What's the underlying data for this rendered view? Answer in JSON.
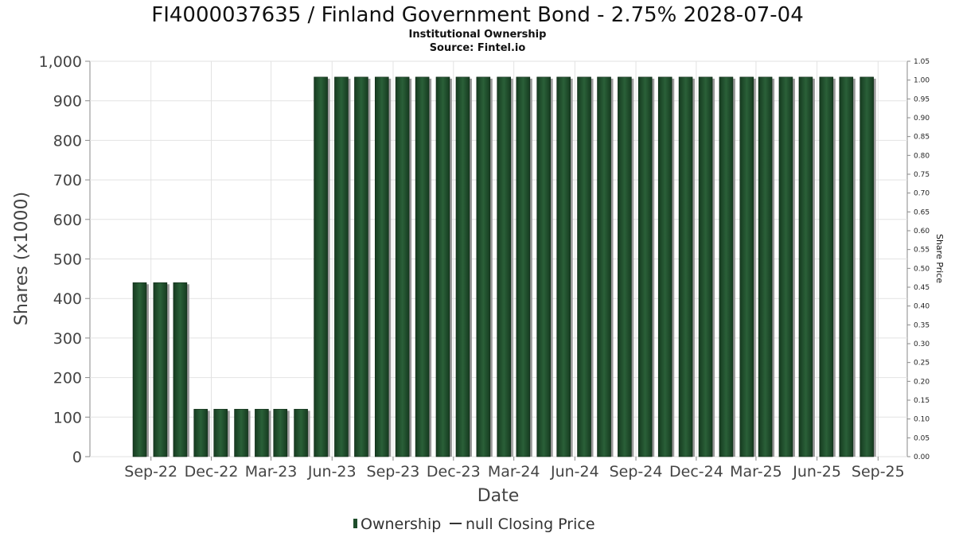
{
  "chart_data": {
    "type": "bar",
    "title": "FI4000037635 / Finland Government Bond - 2.75% 2028-07-04",
    "subtitle_lines": [
      "Institutional Ownership",
      "Source: Fintel.io"
    ],
    "xlabel": "Date",
    "ylabel": "Shares (x1000)",
    "y2label": "Share Price",
    "ylim": [
      0,
      1000
    ],
    "y_ticks": [
      0,
      100,
      200,
      300,
      400,
      500,
      600,
      700,
      800,
      900,
      1000
    ],
    "y_tick_labels": [
      "0",
      "100",
      "200",
      "300",
      "400",
      "500",
      "600",
      "700",
      "800",
      "900",
      "1,000"
    ],
    "y2lim": [
      0,
      1.05
    ],
    "y2_ticks": [
      0,
      0.05,
      0.1,
      0.15,
      0.2,
      0.25,
      0.3,
      0.35,
      0.4,
      0.45,
      0.5,
      0.55,
      0.6,
      0.65,
      0.7,
      0.75,
      0.8,
      0.85,
      0.9,
      0.95,
      1.0,
      1.05
    ],
    "y2_tick_labels": [
      "0.00",
      "0.05",
      "0.10",
      "0.15",
      "0.20",
      "0.25",
      "0.30",
      "0.35",
      "0.40",
      "0.45",
      "0.50",
      "0.55",
      "0.60",
      "0.65",
      "0.70",
      "0.75",
      "0.80",
      "0.85",
      "0.90",
      "0.95",
      "1.00",
      "1.05"
    ],
    "x_tick_labels": [
      "Sep-22",
      "Dec-22",
      "Mar-23",
      "Jun-23",
      "Sep-23",
      "Dec-23",
      "Mar-24",
      "Jun-24",
      "Sep-24",
      "Dec-24",
      "Mar-25",
      "Jun-25",
      "Sep-25"
    ],
    "x_tick_dates": [
      "2022-09-01",
      "2022-12-01",
      "2023-03-01",
      "2023-06-01",
      "2023-09-01",
      "2023-12-01",
      "2024-03-01",
      "2024-06-01",
      "2024-09-01",
      "2024-12-01",
      "2025-03-01",
      "2025-06-01",
      "2025-09-01"
    ],
    "x_range": [
      "2022-06-01",
      "2025-10-15"
    ],
    "series": [
      {
        "name": "Ownership",
        "color": "#1e4d2b",
        "points": [
          {
            "date": "2022-08-15",
            "value": 440
          },
          {
            "date": "2022-09-15",
            "value": 440
          },
          {
            "date": "2022-10-15",
            "value": 440
          },
          {
            "date": "2022-11-15",
            "value": 120
          },
          {
            "date": "2022-12-15",
            "value": 120
          },
          {
            "date": "2023-01-15",
            "value": 120
          },
          {
            "date": "2023-02-15",
            "value": 120
          },
          {
            "date": "2023-03-15",
            "value": 120
          },
          {
            "date": "2023-04-15",
            "value": 120
          },
          {
            "date": "2023-05-15",
            "value": 960
          },
          {
            "date": "2023-06-15",
            "value": 960
          },
          {
            "date": "2023-07-15",
            "value": 960
          },
          {
            "date": "2023-08-15",
            "value": 960
          },
          {
            "date": "2023-09-15",
            "value": 960
          },
          {
            "date": "2023-10-15",
            "value": 960
          },
          {
            "date": "2023-11-15",
            "value": 960
          },
          {
            "date": "2023-12-15",
            "value": 960
          },
          {
            "date": "2024-01-15",
            "value": 960
          },
          {
            "date": "2024-02-15",
            "value": 960
          },
          {
            "date": "2024-03-15",
            "value": 960
          },
          {
            "date": "2024-04-15",
            "value": 960
          },
          {
            "date": "2024-05-15",
            "value": 960
          },
          {
            "date": "2024-06-15",
            "value": 960
          },
          {
            "date": "2024-07-15",
            "value": 960
          },
          {
            "date": "2024-08-15",
            "value": 960
          },
          {
            "date": "2024-09-15",
            "value": 960
          },
          {
            "date": "2024-10-15",
            "value": 960
          },
          {
            "date": "2024-11-15",
            "value": 960
          },
          {
            "date": "2024-12-15",
            "value": 960
          },
          {
            "date": "2025-01-15",
            "value": 960
          },
          {
            "date": "2025-02-15",
            "value": 960
          },
          {
            "date": "2025-03-15",
            "value": 960
          },
          {
            "date": "2025-04-15",
            "value": 960
          },
          {
            "date": "2025-05-15",
            "value": 960
          },
          {
            "date": "2025-06-15",
            "value": 960
          },
          {
            "date": "2025-07-15",
            "value": 960
          },
          {
            "date": "2025-08-15",
            "value": 960
          }
        ]
      }
    ],
    "legend": [
      {
        "label": "Ownership",
        "marker": "bar",
        "color": "#1e4d2b"
      },
      {
        "label": "null Closing Price",
        "marker": "line",
        "color": "#333333"
      }
    ],
    "legend_placement": "bottom-center",
    "grid": true
  }
}
